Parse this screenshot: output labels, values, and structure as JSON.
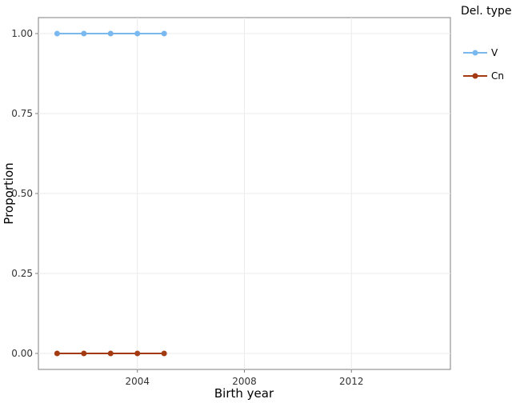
{
  "chart_data": {
    "type": "line",
    "xlabel": "Birth year",
    "ylabel": "Proportion",
    "xlim": [
      2000.3,
      2015.7
    ],
    "ylim": [
      -0.05,
      1.05
    ],
    "x_ticks": [
      2004,
      2008,
      2012
    ],
    "y_ticks": [
      0,
      0.25,
      0.5,
      0.75,
      1
    ],
    "x_tick_labels": [
      "2004",
      "2008",
      "2012"
    ],
    "y_tick_labels": [
      "0.00",
      "0.25",
      "0.50",
      "0.75",
      "1.00"
    ],
    "grid": true,
    "legend": {
      "title": "Del. type",
      "position": "right"
    },
    "series": [
      {
        "name": "V",
        "color": "#7ab8f0",
        "x": [
          2001,
          2002,
          2003,
          2004,
          2005
        ],
        "y": [
          1,
          1,
          1,
          1,
          1
        ]
      },
      {
        "name": "Cn",
        "color": "#a33a12",
        "x": [
          2001,
          2002,
          2003,
          2004,
          2005
        ],
        "y": [
          0,
          0,
          0,
          0,
          0
        ]
      }
    ]
  }
}
